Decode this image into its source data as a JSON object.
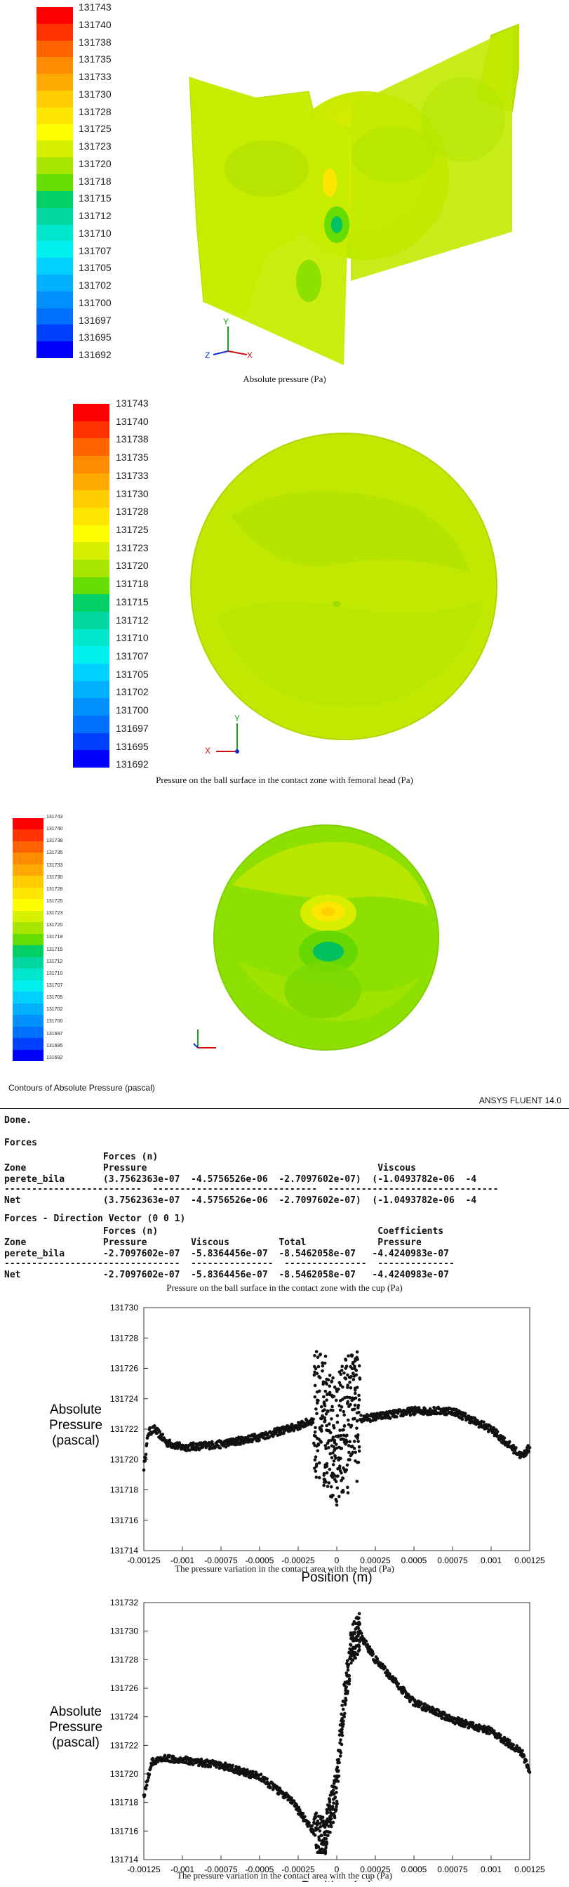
{
  "colorbar": {
    "levels": [
      "131743",
      "131740",
      "131738",
      "131735",
      "131733",
      "131730",
      "131728",
      "131725",
      "131723",
      "131720",
      "131718",
      "131715",
      "131712",
      "131710",
      "131707",
      "131705",
      "131702",
      "131700",
      "131697",
      "131695",
      "131692"
    ],
    "colors": [
      "#ff0000",
      "#ff3200",
      "#ff6400",
      "#ff8c00",
      "#ffaa00",
      "#ffcc00",
      "#ffe600",
      "#ffff00",
      "#d6f000",
      "#a8e600",
      "#66dd00",
      "#00d066",
      "#00d6a0",
      "#00e6cc",
      "#00f0f0",
      "#00d0ff",
      "#00b0ff",
      "#0090ff",
      "#0070ff",
      "#0040ff",
      "#0000ff"
    ]
  },
  "fig1": {
    "caption": "Absolute pressure (Pa)"
  },
  "fig2": {
    "caption": "Pressure on the ball surface in the contact zone with femoral head (Pa)"
  },
  "fig3": {
    "title": "Contours of Absolute Pressure (pascal)",
    "brand": "ANSYS FLUENT 14.0"
  },
  "report": {
    "done": "Done.",
    "forces_heading": "Forces",
    "t1_h1": "                  Forces (n)",
    "t1_h2": "Zone              Pressure                                          Viscous",
    "t1_zone": "perete_bila       (3.7562363e-07  -4.5756526e-06  -2.7097602e-07)  (-1.0493782e-06  -4",
    "t1_sep": "-------------------------  ------------------------------  -------------------------------",
    "t1_net": "Net               (3.7562363e-07  -4.5756526e-06  -2.7097602e-07)  (-1.0493782e-06  -4",
    "dir_heading": "Forces - Direction Vector (0 0 1)",
    "t2_h1": "                  Forces (n)                                        Coefficients",
    "t2_h2": "Zone              Pressure        Viscous         Total             Pressure",
    "t2_zone": "perete_bila       -2.7097602e-07  -5.8364456e-07  -8.5462058e-07   -4.4240983e-07",
    "t2_sep": "--------------------------------  ---------------  ---------------  --------------",
    "t2_net": "Net               -2.7097602e-07  -5.8364456e-07  -8.5462058e-07   -4.4240983e-07",
    "caption": "Pressure on the ball surface in the contact zone with the cup (Pa)"
  },
  "chart_data": [
    {
      "type": "scatter",
      "title": "",
      "xlabel": "Position (m)",
      "ylabel": "Absolute Pressure (pascal)",
      "ylabel_lines": [
        "Absolute",
        "Pressure",
        "(pascal)"
      ],
      "xlim": [
        -0.00125,
        0.00125
      ],
      "ylim": [
        131714,
        131730
      ],
      "xticks": [
        "-0.00125",
        "-0.001",
        "-0.00075",
        "-0.0005",
        "-0.00025",
        "0",
        "0.00025",
        "0.0005",
        "0.00075",
        "0.001",
        "0.00125"
      ],
      "yticks": [
        "131714",
        "131716",
        "131718",
        "131720",
        "131722",
        "131724",
        "131726",
        "131728",
        "131730"
      ],
      "profile": [
        [
          -0.00125,
          131719.5
        ],
        [
          -0.00122,
          131721.8
        ],
        [
          -0.00118,
          131722.0
        ],
        [
          -0.0011,
          131721.1
        ],
        [
          -0.001,
          131720.8
        ],
        [
          -0.00075,
          131721.0
        ],
        [
          -0.0005,
          131721.5
        ],
        [
          -0.00025,
          131722.2
        ],
        [
          -0.0001,
          131722.8
        ],
        [
          0.0,
          131721.5
        ],
        [
          0.0001,
          131722.6
        ],
        [
          0.00025,
          131722.8
        ],
        [
          0.0005,
          131723.2
        ],
        [
          0.00075,
          131723.2
        ],
        [
          0.001,
          131722.0
        ],
        [
          0.0012,
          131720.2
        ],
        [
          0.00125,
          131720.8
        ]
      ],
      "caption": "The pressure variation in the contact area with the head (Pa)"
    },
    {
      "type": "scatter",
      "title": "",
      "xlabel": "Position (m)",
      "ylabel": "Absolute Pressure (pascal)",
      "ylabel_lines": [
        "Absolute",
        "Pressure",
        "(pascal)"
      ],
      "xlim": [
        -0.00125,
        0.00125
      ],
      "ylim": [
        131714,
        131732
      ],
      "xticks": [
        "-0.00125",
        "-0.001",
        "-0.00075",
        "-0.0005",
        "-0.00025",
        "0",
        "0.00025",
        "0.0005",
        "0.00075",
        "0.001",
        "0.00125"
      ],
      "yticks": [
        "131714",
        "131716",
        "131718",
        "131720",
        "131722",
        "131724",
        "131726",
        "131728",
        "131730",
        "131732"
      ],
      "profile": [
        [
          -0.00125,
          131718.5
        ],
        [
          -0.0012,
          131720.8
        ],
        [
          -0.0011,
          131721.1
        ],
        [
          -0.001,
          131721.0
        ],
        [
          -0.00075,
          131720.6
        ],
        [
          -0.0005,
          131719.8
        ],
        [
          -0.0003,
          131718.2
        ],
        [
          -0.00015,
          131716.0
        ],
        [
          -8e-05,
          131715.5
        ],
        [
          0.0,
          131719.0
        ],
        [
          5e-05,
          131725.5
        ],
        [
          0.0001,
          131729.2
        ],
        [
          0.00015,
          131729.8
        ],
        [
          0.00025,
          131728.0
        ],
        [
          0.0005,
          131725.0
        ],
        [
          0.00075,
          131723.8
        ],
        [
          0.001,
          131723.0
        ],
        [
          0.0012,
          131721.5
        ],
        [
          0.00125,
          131720.2
        ]
      ],
      "caption": "The pressure variation in the contact area with the cup (Pa)"
    }
  ]
}
